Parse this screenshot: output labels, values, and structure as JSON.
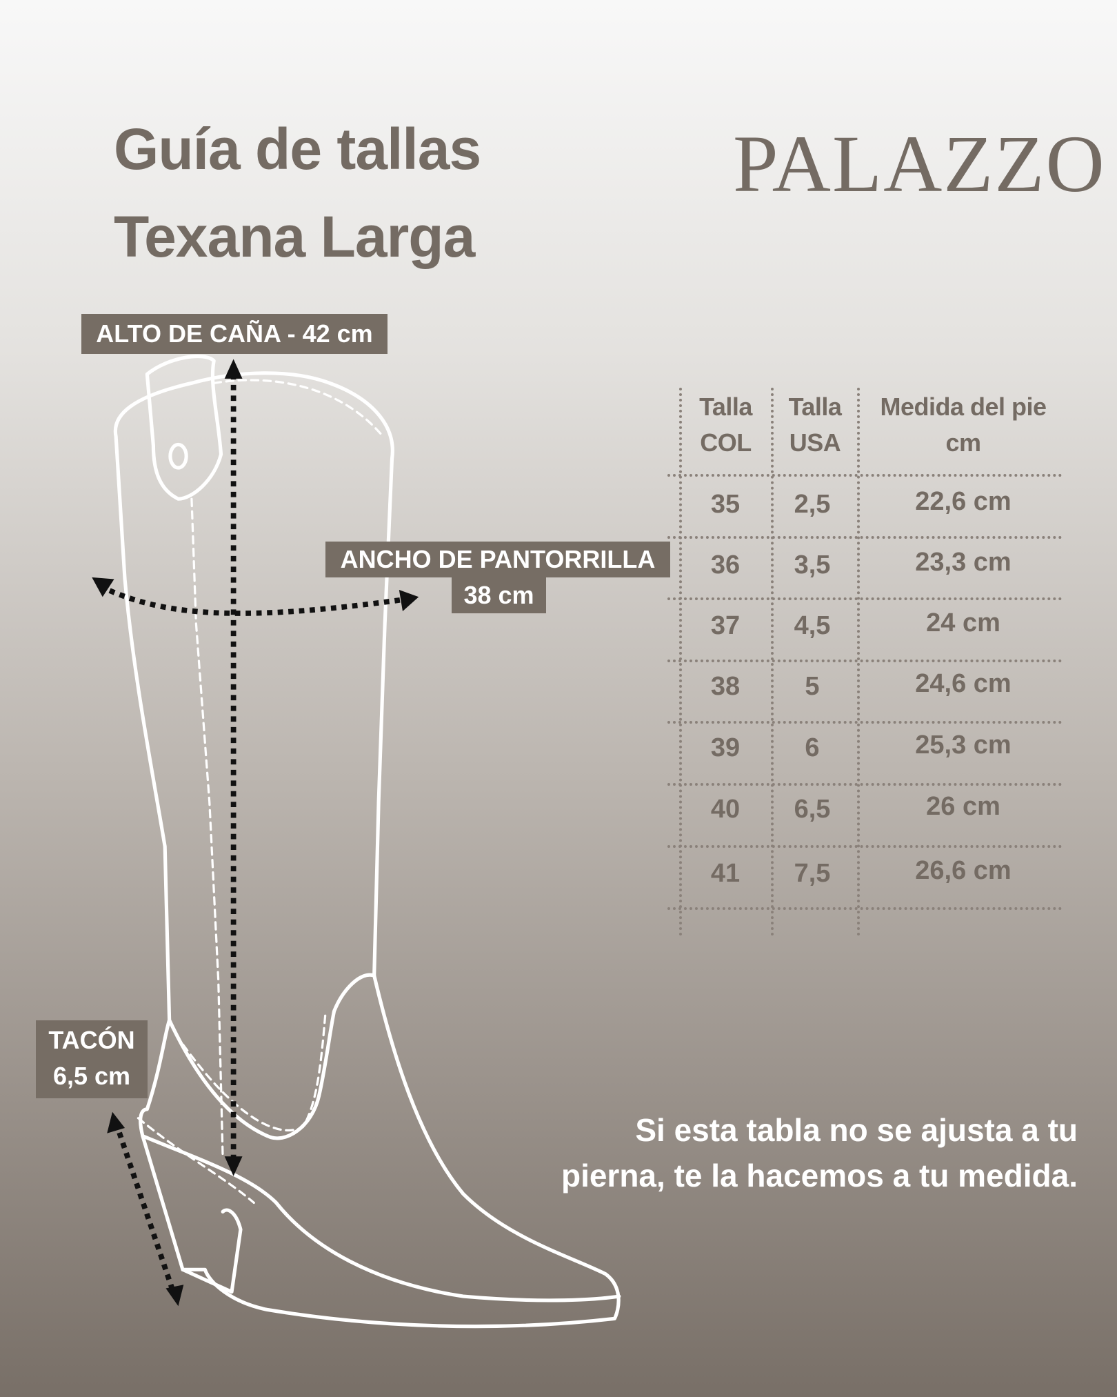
{
  "header": {
    "title_line1": "Guía de tallas",
    "title_line2": "Texana Larga",
    "brand_logo": "PALAZZO"
  },
  "measurements": {
    "shaft_height": "ALTO DE CAÑA - 42 cm",
    "calf_width_label": "ANCHO DE PANTORRILLA",
    "calf_width_value": "38 cm",
    "heel_label": "TACÓN",
    "heel_value": "6,5 cm"
  },
  "size_table": {
    "headers": [
      {
        "line1": "Talla",
        "line2": "COL"
      },
      {
        "line1": "Talla",
        "line2": "USA"
      },
      {
        "line1": "Medida del pie",
        "line2": "cm"
      }
    ],
    "rows": [
      [
        "35",
        "2,5",
        "22,6 cm"
      ],
      [
        "36",
        "3,5",
        "23,3 cm"
      ],
      [
        "37",
        "4,5",
        "24 cm"
      ],
      [
        "38",
        "5",
        "24,6 cm"
      ],
      [
        "39",
        "6",
        "25,3 cm"
      ],
      [
        "40",
        "6,5",
        "26 cm"
      ],
      [
        "41",
        "7,5",
        "26,6 cm"
      ]
    ]
  },
  "note": {
    "line1": "Si esta tabla  no se ajusta a tu",
    "line2": "pierna, te la hacemos a tu medida."
  },
  "colors": {
    "brand": "#746b63",
    "tag_bg": "#766d64",
    "boot_outline": "#ffffff"
  }
}
